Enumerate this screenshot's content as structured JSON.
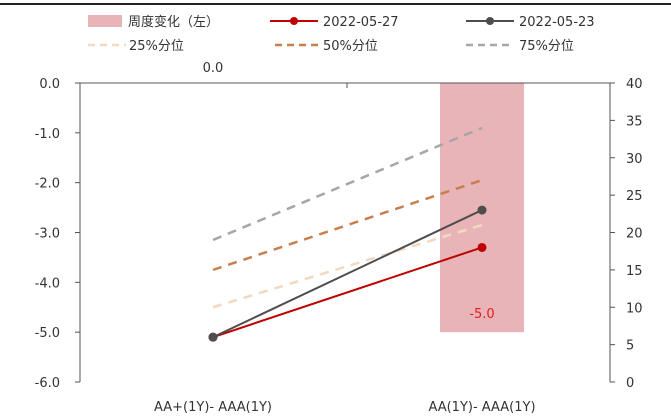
{
  "chart_data": {
    "type": "bar+line",
    "categories": [
      "AA+(1Y)- AAA(1Y)",
      "AA(1Y)- AAA(1Y)"
    ],
    "left_axis": {
      "ylim": [
        -6.0,
        0.0
      ],
      "ticks": [
        "0.0",
        "-1.0",
        "-2.0",
        "-3.0",
        "-4.0",
        "-5.0",
        "-6.0"
      ]
    },
    "right_axis": {
      "ylim": [
        0,
        40
      ],
      "ticks": [
        "40",
        "35",
        "30",
        "25",
        "20",
        "15",
        "10",
        "5",
        "0"
      ]
    },
    "bar_series": {
      "name": "周度变化（左）",
      "values": [
        0.0,
        -5.0
      ],
      "data_labels": [
        "0.0",
        "-5.0"
      ],
      "color": "#e8b4b8",
      "label_colors": [
        "#333333",
        "#e02020"
      ]
    },
    "line_series": [
      {
        "name": "2022-05-27",
        "values": [
          6,
          18
        ],
        "color": "#c00000",
        "style": "solid",
        "marker": true
      },
      {
        "name": "2022-05-23",
        "values": [
          6,
          23
        ],
        "color": "#4d4d4d",
        "style": "solid",
        "marker": true
      },
      {
        "name": "25%分位",
        "values": [
          10,
          21
        ],
        "color": "#f2d9bf",
        "style": "dashed",
        "marker": false
      },
      {
        "name": "50%分位",
        "values": [
          15,
          27
        ],
        "color": "#c87f4f",
        "style": "dashed",
        "marker": false
      },
      {
        "name": "75%分位",
        "values": [
          19,
          34
        ],
        "color": "#a6a6a6",
        "style": "dashed",
        "marker": false
      }
    ],
    "legend_placement": "top",
    "grid": false
  }
}
